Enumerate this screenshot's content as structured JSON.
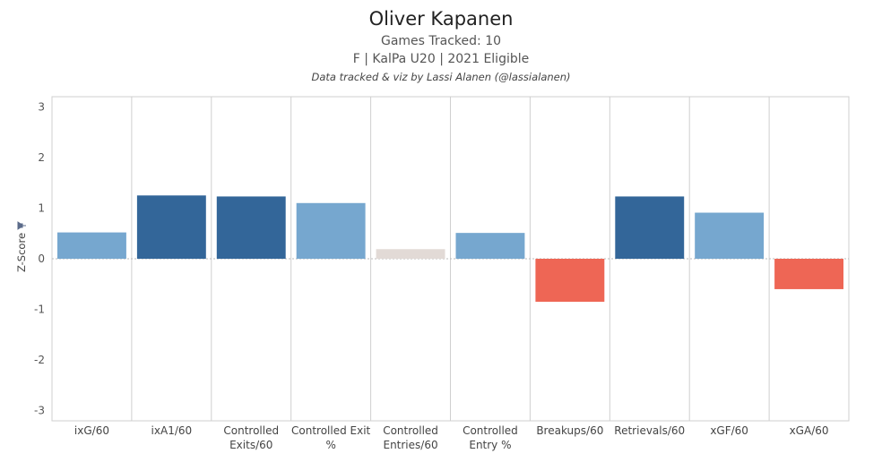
{
  "title": "Oliver Kapanen",
  "subtitle_lines": [
    "Games Tracked: 10",
    "F | KalPa U20 | 2021 Eligible"
  ],
  "credit": "Data tracked & viz by Lassi Alanen (@lassialanen)",
  "colors": {
    "strong_positive": "#336699",
    "positive": "#76a7cf",
    "neutral": "#e2dad6",
    "negative": "#ee6655",
    "grid": "#cfcfcf",
    "zero_line": "#bbbbbb"
  },
  "chart_data": {
    "type": "bar",
    "ylabel": "Z-Score",
    "ylim": [
      -3.2,
      3.2
    ],
    "yticks": [
      3,
      2,
      1,
      0,
      -1,
      -2,
      -3
    ],
    "categories": [
      [
        "ixG/60"
      ],
      [
        "ixA1/60"
      ],
      [
        "Controlled",
        "Exits/60"
      ],
      [
        "Controlled Exit",
        "%"
      ],
      [
        "Controlled",
        "Entries/60"
      ],
      [
        "Controlled",
        "Entry %"
      ],
      [
        "Breakups/60"
      ],
      [
        "Retrievals/60"
      ],
      [
        "xGF/60"
      ],
      [
        "xGA/60"
      ]
    ],
    "values": [
      0.52,
      1.25,
      1.23,
      1.1,
      0.19,
      0.51,
      -0.85,
      1.23,
      0.91,
      -0.6
    ],
    "bar_colors": [
      "positive",
      "strong_positive",
      "strong_positive",
      "positive",
      "neutral",
      "positive",
      "negative",
      "strong_positive",
      "positive",
      "negative"
    ]
  }
}
